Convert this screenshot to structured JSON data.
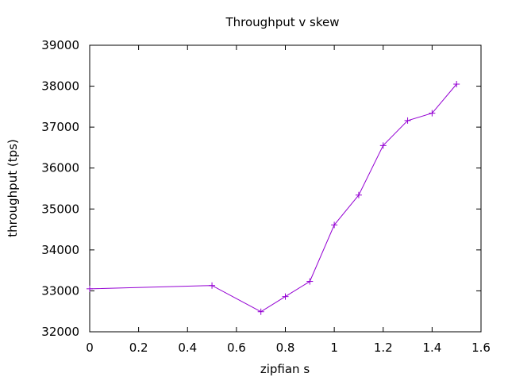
{
  "chart_data": {
    "type": "line",
    "title": "Throughput v skew",
    "xlabel": "zipfian s",
    "ylabel": "throughput (tps)",
    "xlim": [
      0,
      1.6
    ],
    "ylim": [
      32000,
      39000
    ],
    "x_ticks": [
      0,
      0.2,
      0.4,
      0.6,
      0.8,
      1,
      1.2,
      1.4,
      1.6
    ],
    "x_tick_labels": [
      "0",
      "0.2",
      "0.4",
      "0.6",
      "0.8",
      "1",
      "1.2",
      "1.4",
      "1.6"
    ],
    "y_ticks": [
      32000,
      33000,
      34000,
      35000,
      36000,
      37000,
      38000,
      39000
    ],
    "y_tick_labels": [
      "32000",
      "33000",
      "34000",
      "35000",
      "36000",
      "37000",
      "38000",
      "39000"
    ],
    "grid": false,
    "legend": "none",
    "series": [
      {
        "color": "#9400d3",
        "marker": "plus",
        "x": [
          0,
          0.5,
          0.7,
          0.8,
          0.9,
          1.0,
          1.1,
          1.2,
          1.3,
          1.4,
          1.5
        ],
        "y": [
          33050,
          33130,
          32490,
          32860,
          33230,
          34610,
          35340,
          36550,
          37160,
          37340,
          38050
        ]
      }
    ]
  }
}
